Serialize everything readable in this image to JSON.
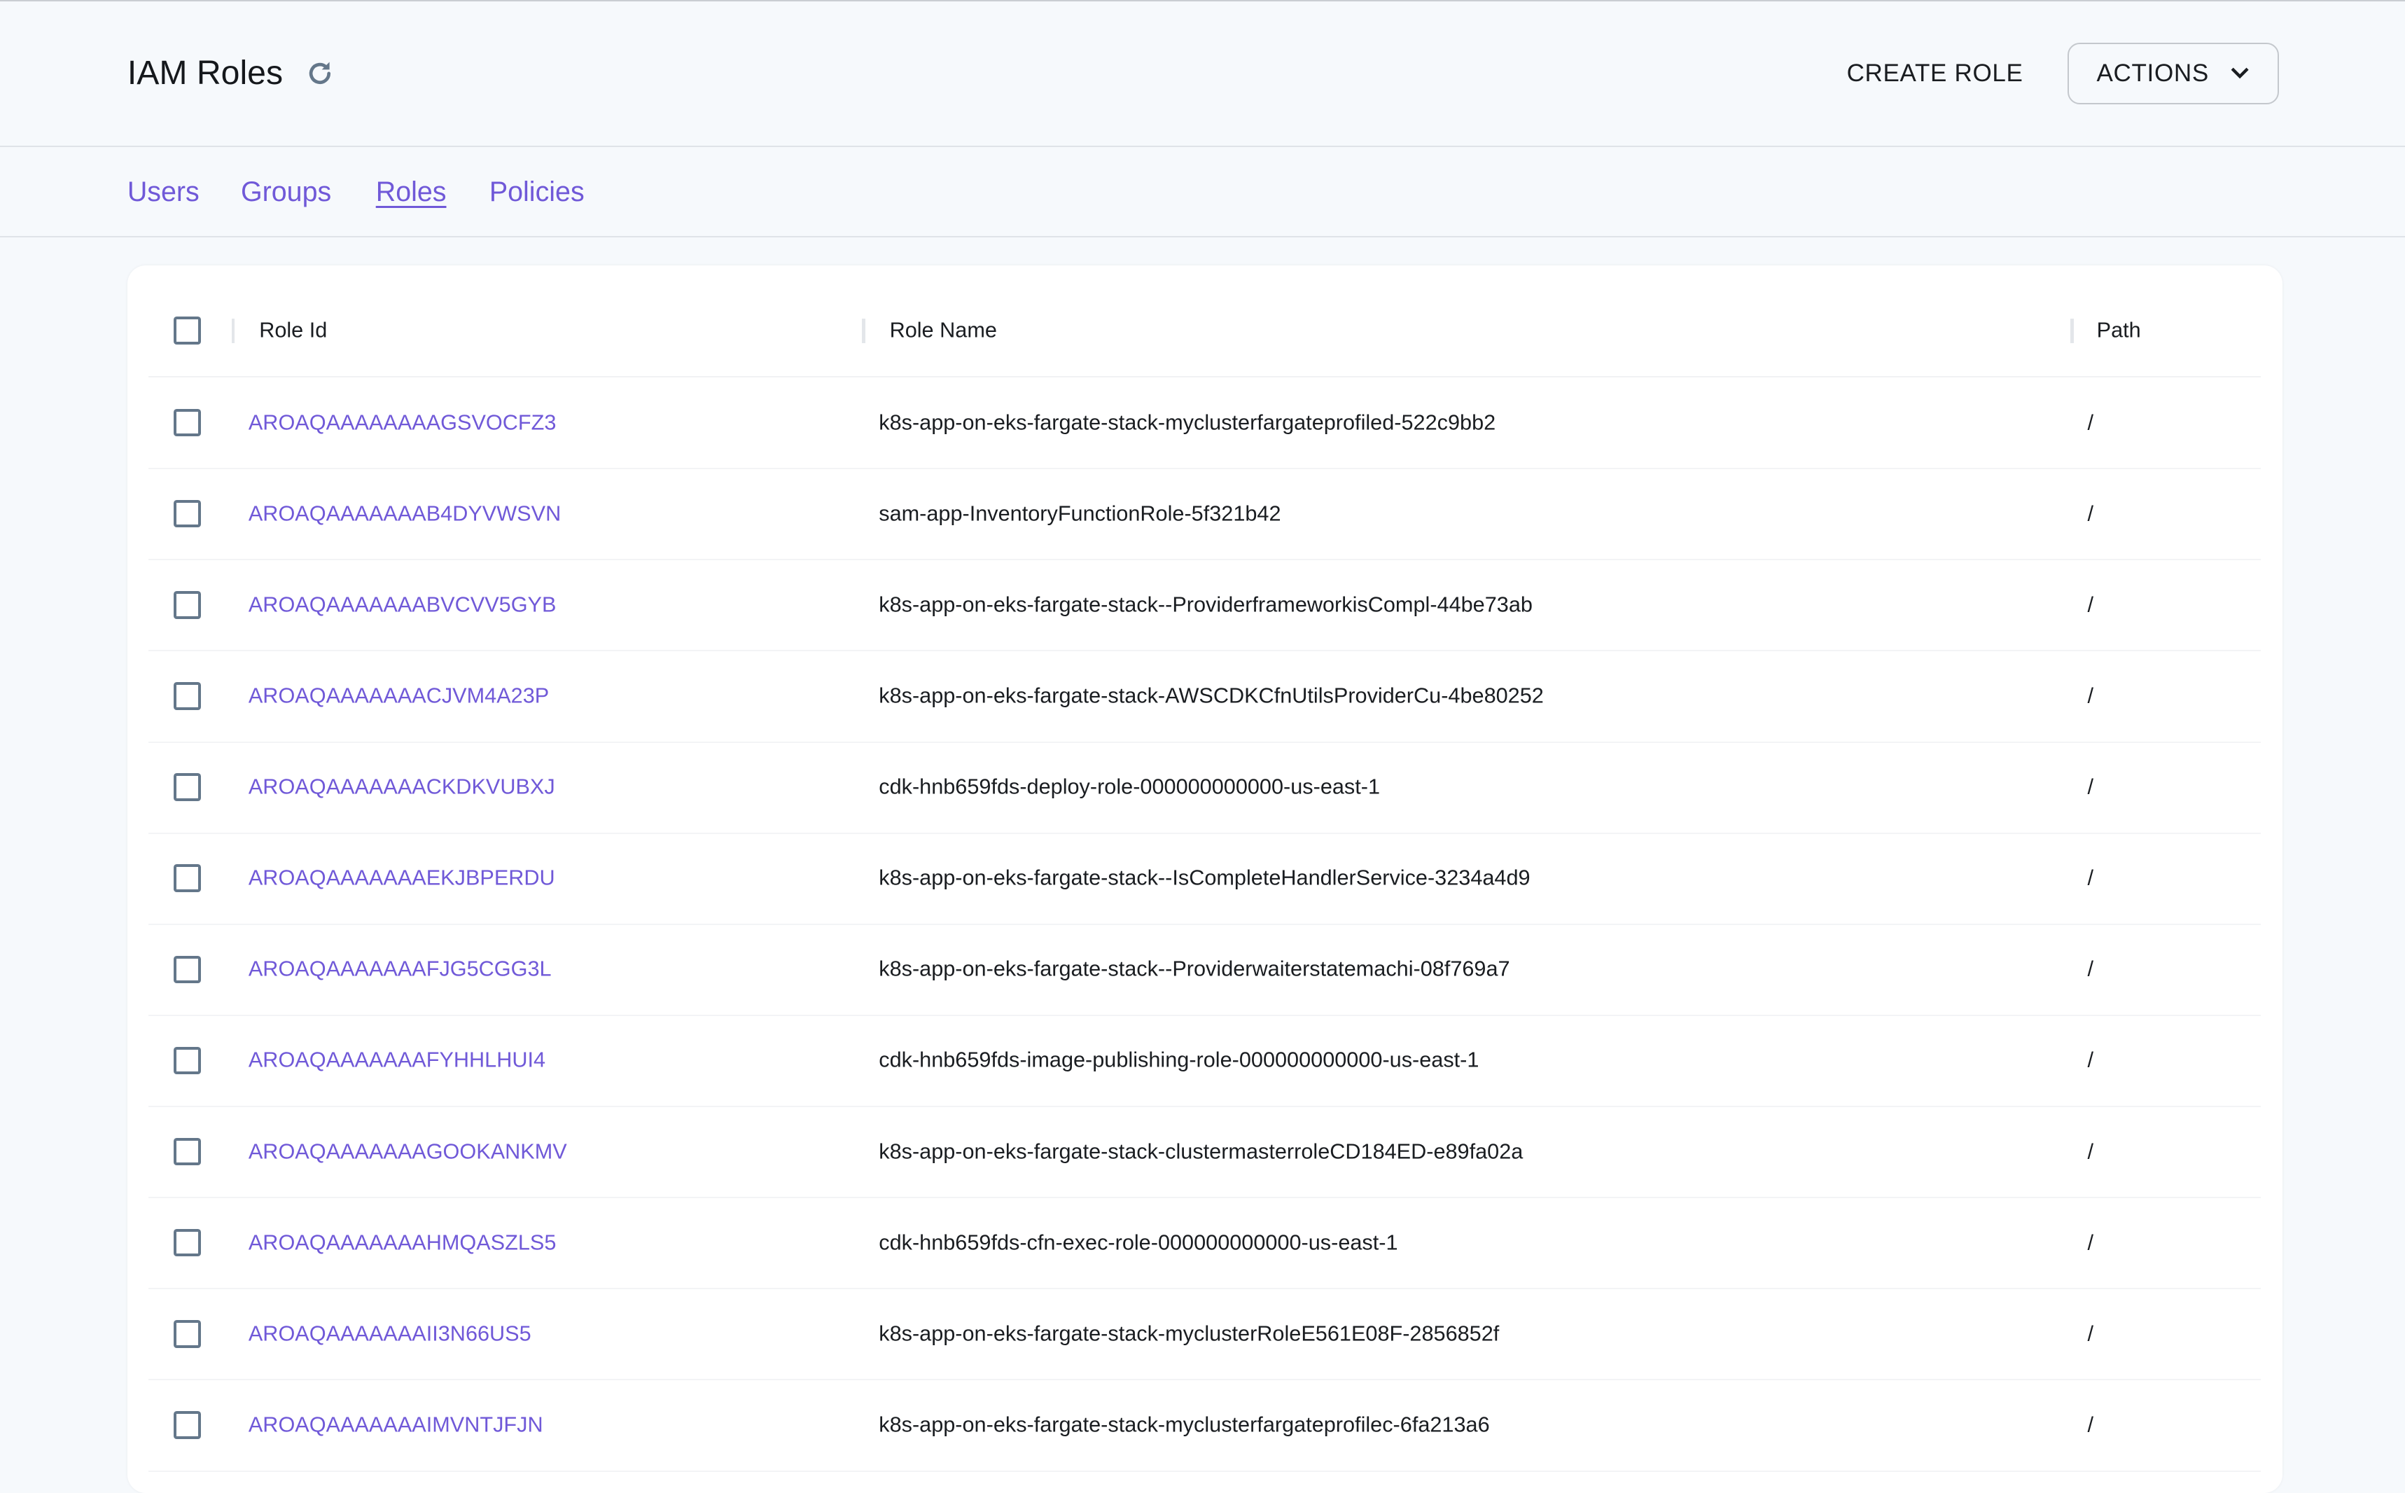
{
  "header": {
    "title": "IAM Roles",
    "refresh_icon": "refresh-icon",
    "create_label": "CREATE ROLE",
    "actions_label": "ACTIONS",
    "actions_icon": "chevron-down-icon"
  },
  "tabs": [
    {
      "label": "Users"
    },
    {
      "label": "Groups"
    },
    {
      "label": "Roles",
      "active": true
    },
    {
      "label": "Policies"
    }
  ],
  "colors": {
    "accent": "#7059d8",
    "background": "#f6f9fc",
    "checkbox": "#64778a"
  },
  "table": {
    "columns": [
      "Role Id",
      "Role Name",
      "Path"
    ],
    "rows": [
      {
        "id": "AROAQAAAAAAAAGSVOCFZ3",
        "name": "k8s-app-on-eks-fargate-stack-myclusterfargateprofiled-522c9bb2",
        "path": "/"
      },
      {
        "id": "AROAQAAAAAAAB4DYVWSVN",
        "name": "sam-app-InventoryFunctionRole-5f321b42",
        "path": "/"
      },
      {
        "id": "AROAQAAAAAAABVCVV5GYB",
        "name": "k8s-app-on-eks-fargate-stack--ProviderframeworkisCompl-44be73ab",
        "path": "/"
      },
      {
        "id": "AROAQAAAAAAACJVM4A23P",
        "name": "k8s-app-on-eks-fargate-stack-AWSCDKCfnUtilsProviderCu-4be80252",
        "path": "/"
      },
      {
        "id": "AROAQAAAAAAACKDKVUBXJ",
        "name": "cdk-hnb659fds-deploy-role-000000000000-us-east-1",
        "path": "/"
      },
      {
        "id": "AROAQAAAAAAAEKJBPERDU",
        "name": "k8s-app-on-eks-fargate-stack--IsCompleteHandlerService-3234a4d9",
        "path": "/"
      },
      {
        "id": "AROAQAAAAAAAFJG5CGG3L",
        "name": "k8s-app-on-eks-fargate-stack--Providerwaiterstatemachi-08f769a7",
        "path": "/"
      },
      {
        "id": "AROAQAAAAAAAFYHHLHUI4",
        "name": "cdk-hnb659fds-image-publishing-role-000000000000-us-east-1",
        "path": "/"
      },
      {
        "id": "AROAQAAAAAAAGOOKANKMV",
        "name": "k8s-app-on-eks-fargate-stack-clustermasterroleCD184ED-e89fa02a",
        "path": "/"
      },
      {
        "id": "AROAQAAAAAAAHMQASZLS5",
        "name": "cdk-hnb659fds-cfn-exec-role-000000000000-us-east-1",
        "path": "/"
      },
      {
        "id": "AROAQAAAAAAAII3N66US5",
        "name": "k8s-app-on-eks-fargate-stack-myclusterRoleE561E08F-2856852f",
        "path": "/"
      },
      {
        "id": "AROAQAAAAAAAIMVNTJFJN",
        "name": "k8s-app-on-eks-fargate-stack-myclusterfargateprofilec-6fa213a6",
        "path": "/"
      }
    ]
  }
}
